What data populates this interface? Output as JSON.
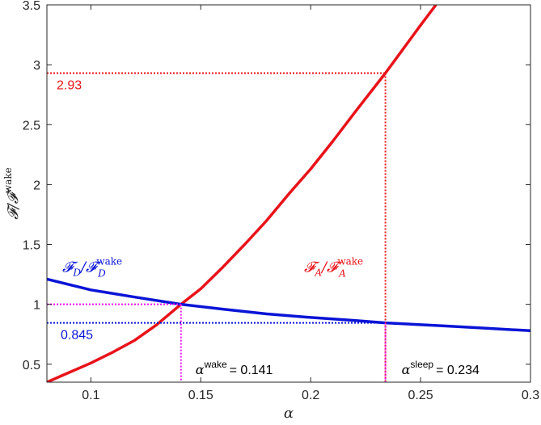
{
  "chart_data": {
    "type": "line",
    "xlabel": "α",
    "ylabel": "𝓕/𝓕",
    "ylabel_sup": "wake",
    "xlim": [
      0.08,
      0.3
    ],
    "ylim": [
      0.35,
      3.5
    ],
    "xticks": [
      0.1,
      0.15,
      0.2,
      0.25,
      0.3
    ],
    "xtick_labels": [
      "0.1",
      "0.15",
      "0.2",
      "0.25",
      "0.3"
    ],
    "yticks": [
      0.5,
      1,
      1.5,
      2,
      2.5,
      3,
      3.5
    ],
    "ytick_labels": [
      "0.5",
      "1",
      "1.5",
      "2",
      "2.5",
      "3",
      "3.5"
    ],
    "grid": false,
    "series": [
      {
        "name": "𝓕A/𝓕A wake",
        "color": "#e8131a",
        "x": [
          0.08,
          0.09,
          0.1,
          0.11,
          0.12,
          0.13,
          0.141,
          0.15,
          0.16,
          0.17,
          0.18,
          0.19,
          0.2,
          0.21,
          0.22,
          0.234,
          0.24,
          0.25,
          0.257
        ],
        "y": [
          0.35,
          0.43,
          0.51,
          0.6,
          0.7,
          0.83,
          1.0,
          1.13,
          1.31,
          1.5,
          1.7,
          1.92,
          2.13,
          2.36,
          2.6,
          2.93,
          3.08,
          3.33,
          3.5
        ]
      },
      {
        "name": "𝓕D/𝓕D wake",
        "color": "#0a14d6",
        "x": [
          0.08,
          0.1,
          0.12,
          0.141,
          0.16,
          0.18,
          0.2,
          0.22,
          0.234,
          0.26,
          0.28,
          0.3
        ],
        "y": [
          1.21,
          1.12,
          1.06,
          1.0,
          0.96,
          0.92,
          0.89,
          0.865,
          0.845,
          0.82,
          0.8,
          0.78
        ]
      }
    ],
    "reference_lines": [
      {
        "x": 0.234,
        "y": 2.93,
        "label": "2.93",
        "color": "#e8131a"
      },
      {
        "x": 0.234,
        "y": 0.845,
        "label": "0.845",
        "color": "#0a14d6"
      },
      {
        "x": 0.141,
        "y": 1.0,
        "label": "",
        "color": "#ee11ee"
      }
    ],
    "annotations": {
      "alpha_wake": {
        "symbol": "α",
        "sup": "wake",
        "value": "= 0.141"
      },
      "alpha_sleep": {
        "symbol": "α",
        "sup": "sleep",
        "value": "= 0.234"
      },
      "curve_a": {
        "F": "𝓕",
        "sub": "A",
        "sep": "/𝓕",
        "sup": "wake",
        "sub2": "A"
      },
      "curve_d": {
        "F": "𝓕",
        "sub": "D",
        "sep": "/𝓕",
        "sup": "wake",
        "sub2": "D"
      }
    }
  }
}
